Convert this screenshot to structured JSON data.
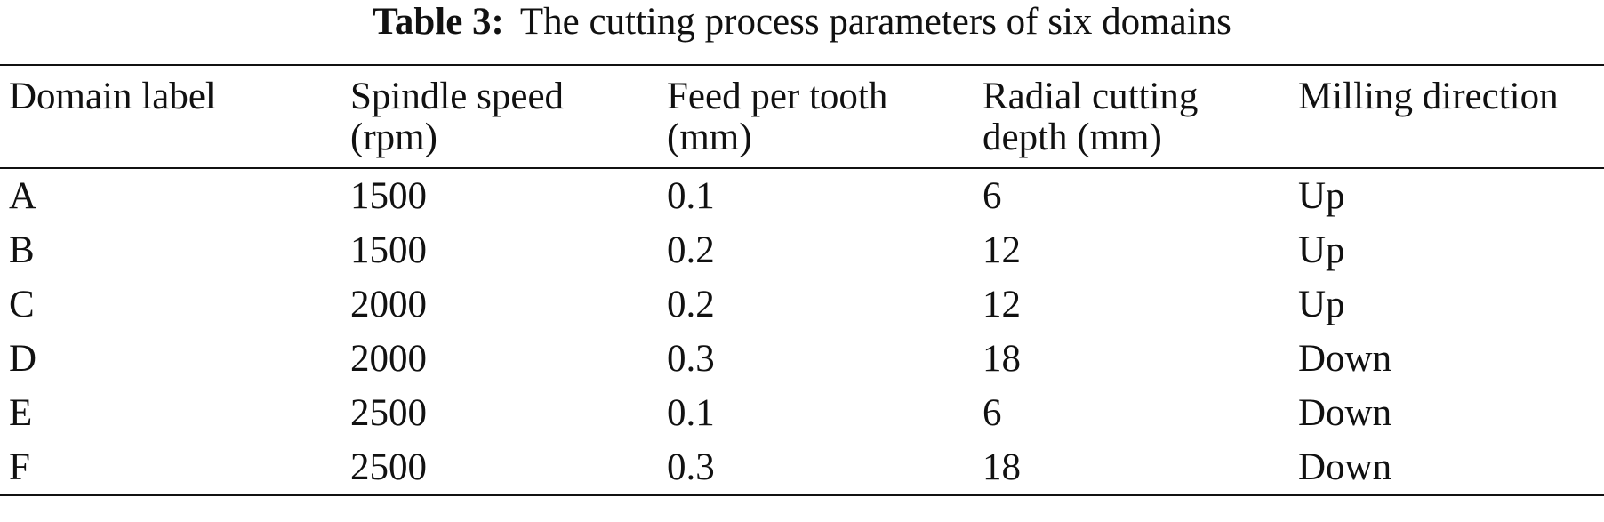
{
  "caption": {
    "label": "Table 3:",
    "text": "The cutting process parameters of six domains"
  },
  "headers": [
    {
      "line1": "Domain label",
      "line2": ""
    },
    {
      "line1": "Spindle speed",
      "line2": "(rpm)"
    },
    {
      "line1": "Feed per tooth",
      "line2": "(mm)"
    },
    {
      "line1": "Radial cutting",
      "line2": "depth (mm)"
    },
    {
      "line1": "Milling direction",
      "line2": ""
    }
  ],
  "rows": [
    [
      "A",
      "1500",
      "0.1",
      "6",
      "Up"
    ],
    [
      "B",
      "1500",
      "0.2",
      "12",
      "Up"
    ],
    [
      "C",
      "2000",
      "0.2",
      "12",
      "Up"
    ],
    [
      "D",
      "2000",
      "0.3",
      "18",
      "Down"
    ],
    [
      "E",
      "2500",
      "0.1",
      "6",
      "Down"
    ],
    [
      "F",
      "2500",
      "0.3",
      "18",
      "Down"
    ]
  ]
}
